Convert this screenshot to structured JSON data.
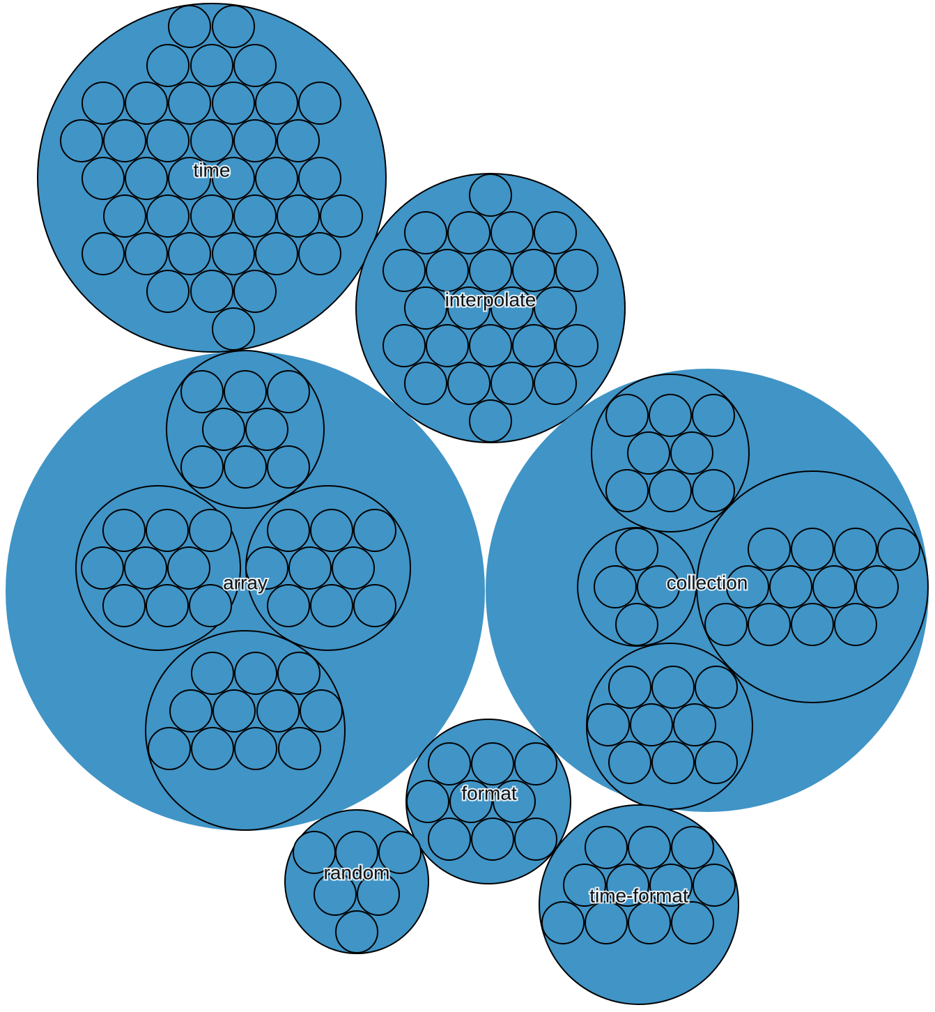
{
  "diagram": {
    "type": "circle-packing",
    "colors": {
      "fill": "#4094c6",
      "stroke": "#000000",
      "label": "#111111"
    },
    "groups": [
      {
        "id": "time",
        "label": "time"
      },
      {
        "id": "interpolate",
        "label": "interpolate"
      },
      {
        "id": "array",
        "label": "array"
      },
      {
        "id": "collection",
        "label": "collection"
      },
      {
        "id": "format",
        "label": "format"
      },
      {
        "id": "random",
        "label": "random"
      },
      {
        "id": "time-format",
        "label": "time-format"
      }
    ]
  }
}
